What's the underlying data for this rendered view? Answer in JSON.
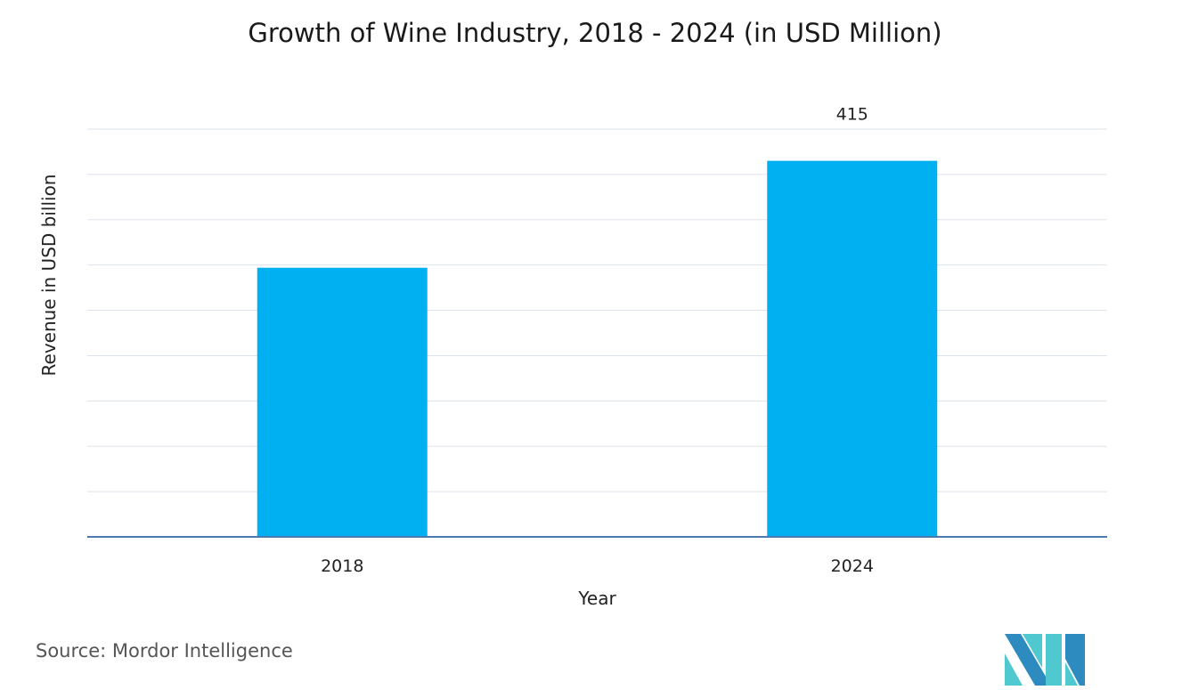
{
  "chart_data": {
    "type": "bar",
    "title": "Growth of Wine Industry, 2018 - 2024 (in USD Million)",
    "xlabel": "Year",
    "ylabel": "Revenue in USD billion",
    "categories": [
      "2018",
      "2024"
    ],
    "values": [
      297,
      415
    ],
    "data_labels": [
      "",
      "415"
    ],
    "ylim": [
      0,
      450
    ],
    "ytick_step": 50,
    "grid": true,
    "bar_color": "#00b0f0"
  },
  "source": "Source: Mordor Intelligence",
  "logo_text": "Mordor Intelligence"
}
